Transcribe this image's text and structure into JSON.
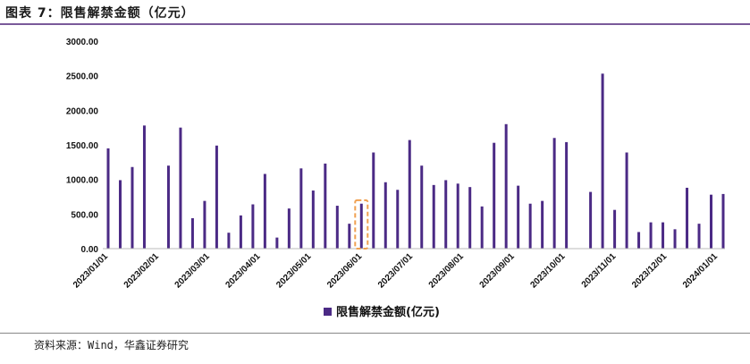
{
  "figure": {
    "title": "图表 7：限售解禁金额（亿元）",
    "source": "资料来源：Wind，华鑫证券研究"
  },
  "colors": {
    "bar": "#4b2a85",
    "highlight": "#f0a050",
    "rule": "#7a5a9a"
  },
  "chart_data": {
    "type": "bar",
    "ylim": [
      0,
      3000
    ],
    "y_ticks": [
      "0.00",
      "500.00",
      "1000.00",
      "1500.00",
      "2000.00",
      "2500.00",
      "3000.00"
    ],
    "x_ticks": [
      "2023/01/01",
      "2023/02/01",
      "2023/03/01",
      "2023/04/01",
      "2023/05/01",
      "2023/06/01",
      "2023/07/01",
      "2023/08/01",
      "2023/09/01",
      "2023/10/01",
      "2023/11/01",
      "2023/12/01",
      "2024/01/01"
    ],
    "series": [
      {
        "name": "限售解禁金额(亿元)",
        "values": [
          1450,
          990,
          1180,
          1780,
          0,
          1200,
          1750,
          440,
          690,
          1490,
          230,
          480,
          640,
          1080,
          160,
          580,
          1160,
          840,
          1230,
          620,
          360,
          650,
          1390,
          960,
          850,
          1570,
          1200,
          920,
          990,
          940,
          890,
          610,
          1530,
          1800,
          910,
          650,
          690,
          1600,
          1540,
          0,
          820,
          2530,
          560,
          1390,
          240,
          380,
          380,
          280,
          880,
          360,
          780,
          790
        ]
      }
    ],
    "grid": false,
    "legend": "bottom-center",
    "highlight_bar_index": 21
  }
}
